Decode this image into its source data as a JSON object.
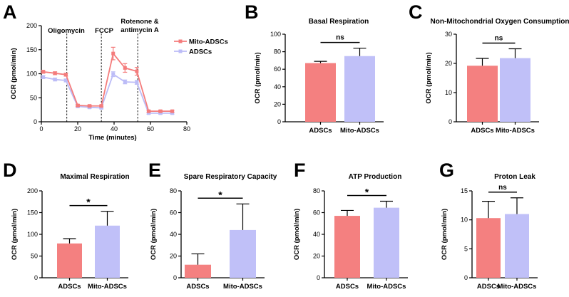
{
  "colors": {
    "mito": "#f47c7c",
    "adsc": "#bcbcf7",
    "mito_bar": "#f48080",
    "adsc_bar": "#c0c0f8"
  },
  "chart_data": [
    {
      "id": "A",
      "type": "line",
      "panel_label": "A",
      "title": "",
      "xlabel": "Time (minutes)",
      "ylabel": "OCR (pmol/min)",
      "xlim": [
        0,
        80
      ],
      "ylim": [
        0,
        200
      ],
      "xticks": [
        "0",
        "20",
        "40",
        "60",
        "80"
      ],
      "yticks": [
        "0",
        "50",
        "100",
        "150",
        "200"
      ],
      "annotations": [
        "Oligomycin",
        "FCCP",
        "Rotenone &",
        "antimycin A"
      ],
      "injection_times": [
        14,
        33,
        53
      ],
      "legend": [
        "Mito-ADSCs",
        "ADSCs"
      ],
      "series": [
        {
          "name": "Mito-ADSCs",
          "color": "mito",
          "x": [
            1,
            7.5,
            13.5,
            20,
            26.5,
            33,
            39.5,
            46,
            52.5,
            59,
            65.5,
            72
          ],
          "y": [
            104,
            101,
            98,
            34,
            33,
            33,
            142,
            112,
            105,
            22,
            22,
            22
          ],
          "err": [
            3,
            3,
            3,
            2,
            2,
            2,
            13,
            9,
            8,
            2,
            2,
            2
          ]
        },
        {
          "name": "ADSCs",
          "color": "adsc",
          "x": [
            1,
            7.5,
            13.5,
            20,
            26.5,
            33,
            39.5,
            46,
            52.5,
            59,
            65.5,
            72
          ],
          "y": [
            93,
            88,
            86,
            32,
            30,
            29,
            99,
            83,
            82,
            18,
            18,
            18
          ],
          "err": [
            3,
            3,
            3,
            2,
            2,
            2,
            5,
            4,
            4,
            2,
            2,
            2
          ]
        }
      ]
    },
    {
      "id": "B",
      "type": "bar",
      "panel_label": "B",
      "title": "Basal Respiration",
      "ylabel": "OCR (pmol/min)",
      "ylim": [
        0,
        100
      ],
      "yticks": [
        "0",
        "20",
        "40",
        "60",
        "80",
        "100"
      ],
      "categories": [
        "ADSCs",
        "Mito-ADSCs"
      ],
      "values": [
        67,
        75
      ],
      "err": [
        2,
        9
      ],
      "significance": "ns"
    },
    {
      "id": "C",
      "type": "bar",
      "panel_label": "C",
      "title": "Non-Mitochondrial Oxygen Consumption",
      "ylabel": "OCR (pmol/min)",
      "ylim": [
        0,
        30
      ],
      "yticks": [
        "0",
        "10",
        "20",
        "30"
      ],
      "categories": [
        "ADSCs",
        "Mito-ADSCs"
      ],
      "values": [
        19.2,
        21.8
      ],
      "err": [
        2.5,
        3.2
      ],
      "significance": "ns"
    },
    {
      "id": "D",
      "type": "bar",
      "panel_label": "D",
      "title": "Maximal Respiration",
      "ylabel": "OCR (pmol/min)",
      "ylim": [
        0,
        200
      ],
      "yticks": [
        "0",
        "50",
        "100",
        "150",
        "200"
      ],
      "categories": [
        "ADSCs",
        "Mito-ADSCs"
      ],
      "values": [
        79,
        120
      ],
      "err": [
        11,
        33
      ],
      "significance": "*"
    },
    {
      "id": "E",
      "type": "bar",
      "panel_label": "E",
      "title": "Spare Respiratory Capacity",
      "ylabel": "OCR (pmol/min)",
      "ylim": [
        0,
        80
      ],
      "yticks": [
        "0",
        "20",
        "40",
        "60",
        "80"
      ],
      "categories": [
        "ADSCs",
        "Mito-ADSCs"
      ],
      "values": [
        12,
        44
      ],
      "err": [
        10,
        24
      ],
      "significance": "*"
    },
    {
      "id": "F",
      "type": "bar",
      "panel_label": "F",
      "title": "ATP Production",
      "ylabel": "OCR (pmol/min)",
      "ylim": [
        0,
        80
      ],
      "yticks": [
        "0",
        "20",
        "40",
        "60",
        "80"
      ],
      "categories": [
        "ADSCs",
        "Mito-ADSCs"
      ],
      "values": [
        57,
        64.5
      ],
      "err": [
        5,
        6
      ],
      "significance": "*"
    },
    {
      "id": "G",
      "type": "bar",
      "panel_label": "G",
      "title": "Proton Leak",
      "ylabel": "OCR (pmol/min)",
      "ylim": [
        0,
        15
      ],
      "yticks": [
        "0",
        "5",
        "10",
        "15"
      ],
      "categories": [
        "ADSCs",
        "Mito-ADSCs"
      ],
      "values": [
        10.3,
        11.0
      ],
      "err": [
        2.9,
        2.8
      ],
      "significance": "ns"
    }
  ]
}
